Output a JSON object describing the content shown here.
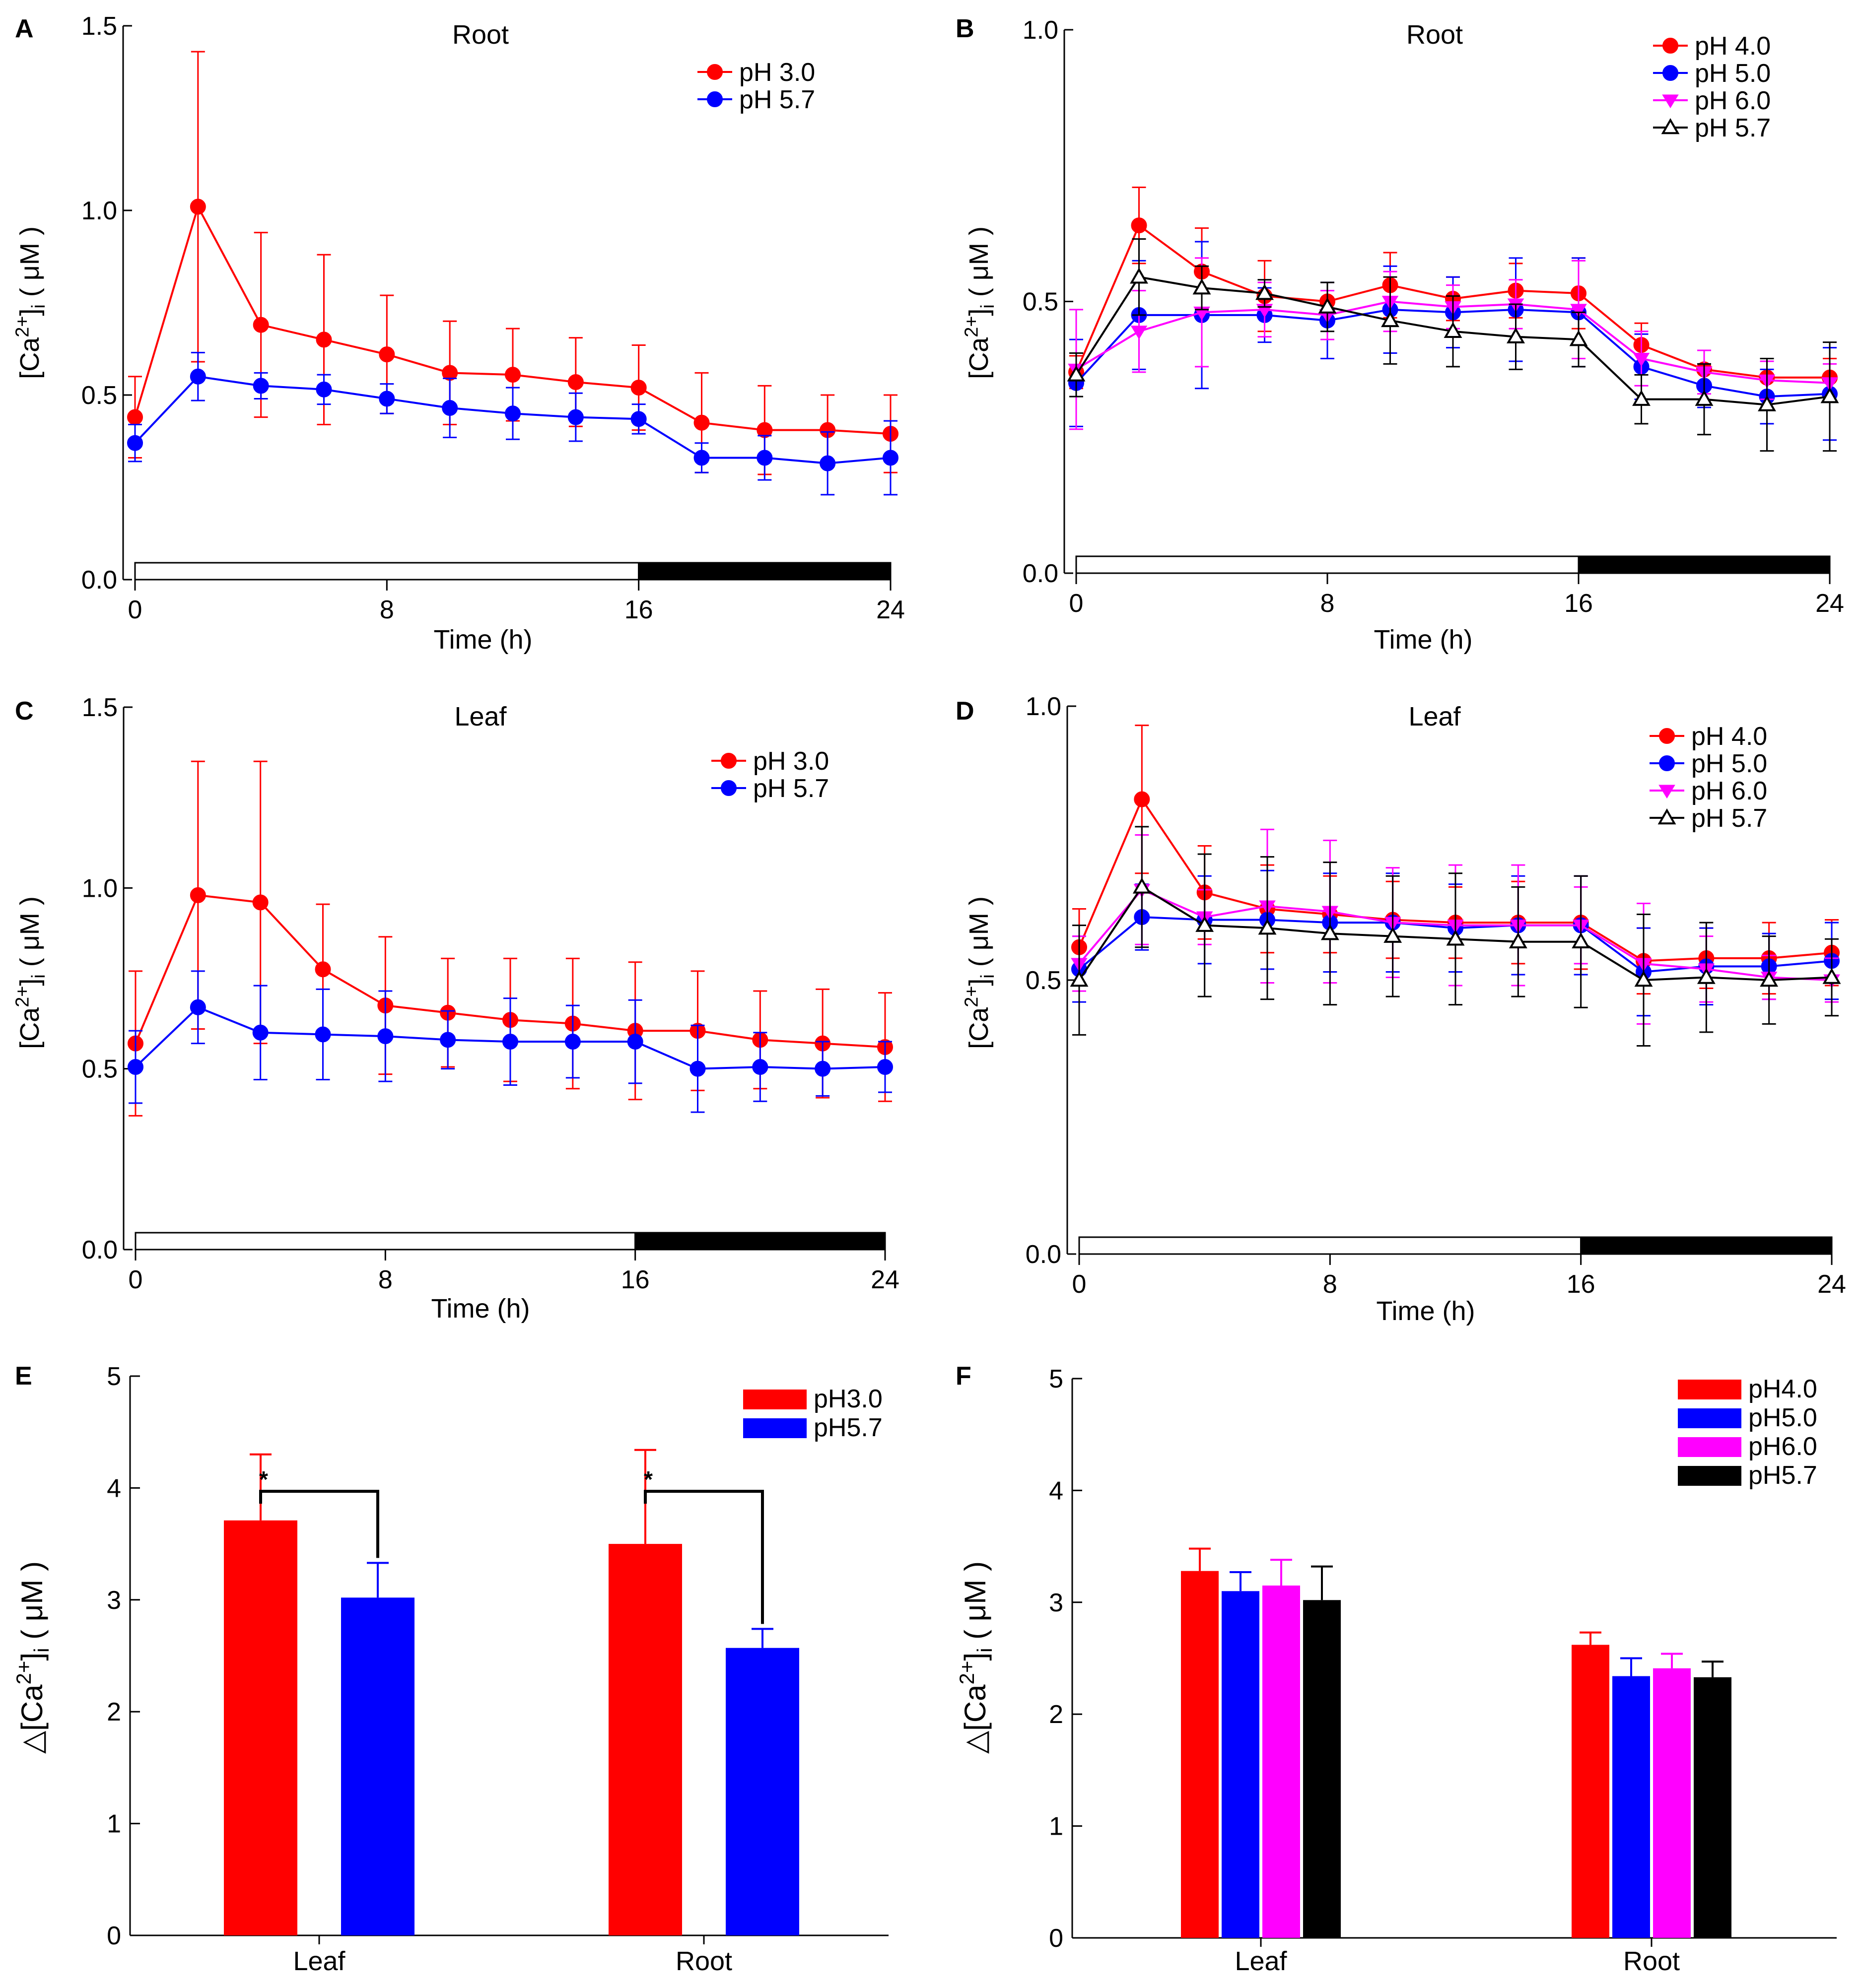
{
  "colors": {
    "red": "#ff0000",
    "blue": "#0000ff",
    "magenta": "#ff00ff",
    "black": "#000000"
  },
  "chart_data": [
    {
      "id": "A",
      "panel_label": "A",
      "type": "line",
      "title": "Root",
      "xlabel": "Time (h)",
      "ylabel_main": "[Ca",
      "ylabel_sup": "2+",
      "ylabel_sub": "i",
      "ylabel_unit": " ( μM )",
      "xlim": [
        0,
        24
      ],
      "ylim": [
        0,
        1.5
      ],
      "xticks": [
        "0",
        "8",
        "16",
        "24"
      ],
      "xtick_values": [
        0,
        8,
        16,
        24
      ],
      "yticks": [
        "0.0",
        "0.5",
        "1.0",
        "1.5"
      ],
      "ytick_values": [
        0,
        0.5,
        1.0,
        1.5
      ],
      "light_period": [
        0,
        16
      ],
      "dark_period": [
        16,
        24
      ],
      "x": [
        0,
        2,
        4,
        6,
        8,
        10,
        12,
        14,
        16,
        18,
        20,
        22,
        24
      ],
      "series": [
        {
          "name": "pH 3.0",
          "color": "red",
          "marker": "circle",
          "values": [
            0.44,
            1.01,
            0.69,
            0.65,
            0.61,
            0.56,
            0.555,
            0.535,
            0.52,
            0.425,
            0.405,
            0.405,
            0.395
          ],
          "errors": [
            0.11,
            0.42,
            0.25,
            0.23,
            0.16,
            0.14,
            0.125,
            0.12,
            0.115,
            0.135,
            0.12,
            0.095,
            0.105
          ]
        },
        {
          "name": "pH 5.7",
          "color": "blue",
          "marker": "circle",
          "values": [
            0.37,
            0.55,
            0.525,
            0.515,
            0.49,
            0.465,
            0.45,
            0.44,
            0.435,
            0.33,
            0.33,
            0.315,
            0.33
          ],
          "errors": [
            0.05,
            0.065,
            0.035,
            0.04,
            0.04,
            0.08,
            0.07,
            0.065,
            0.04,
            0.04,
            0.06,
            0.085,
            0.1
          ]
        }
      ]
    },
    {
      "id": "B",
      "panel_label": "B",
      "type": "line",
      "title": "Root",
      "xlabel": "Time (h)",
      "ylabel_main": "[Ca",
      "ylabel_sup": "2+",
      "ylabel_sub": "i",
      "ylabel_unit": " ( μM )",
      "xlim": [
        0,
        24
      ],
      "ylim": [
        0,
        1.0
      ],
      "xticks": [
        "0",
        "8",
        "16",
        "24"
      ],
      "xtick_values": [
        0,
        8,
        16,
        24
      ],
      "yticks": [
        "0.0",
        "0.5",
        "1.0"
      ],
      "ytick_values": [
        0,
        0.5,
        1.0
      ],
      "light_period": [
        0,
        16
      ],
      "dark_period": [
        16,
        24
      ],
      "x": [
        0,
        2,
        4,
        6,
        8,
        10,
        12,
        14,
        16,
        18,
        20,
        22,
        24
      ],
      "series": [
        {
          "name": "pH 4.0",
          "color": "red",
          "marker": "circle",
          "values": [
            0.37,
            0.64,
            0.555,
            0.51,
            0.5,
            0.53,
            0.505,
            0.52,
            0.515,
            0.42,
            0.375,
            0.36,
            0.36
          ],
          "errors": [
            0.03,
            0.07,
            0.08,
            0.065,
            0.035,
            0.06,
            0.04,
            0.05,
            0.065,
            0.04,
            0.035,
            0.035,
            0.035
          ]
        },
        {
          "name": "pH 5.0",
          "color": "blue",
          "marker": "circle",
          "values": [
            0.35,
            0.475,
            0.475,
            0.475,
            0.465,
            0.485,
            0.48,
            0.485,
            0.48,
            0.38,
            0.345,
            0.325,
            0.33
          ],
          "errors": [
            0.08,
            0.1,
            0.135,
            0.05,
            0.07,
            0.08,
            0.065,
            0.095,
            0.1,
            0.06,
            0.04,
            0.05,
            0.085
          ]
        },
        {
          "name": "pH 6.0",
          "color": "magenta",
          "marker": "triangle-down",
          "values": [
            0.375,
            0.445,
            0.48,
            0.485,
            0.475,
            0.5,
            0.49,
            0.495,
            0.485,
            0.395,
            0.37,
            0.355,
            0.35
          ],
          "errors": [
            0.11,
            0.075,
            0.1,
            0.05,
            0.045,
            0.055,
            0.04,
            0.045,
            0.09,
            0.05,
            0.04,
            0.035,
            0.035
          ]
        },
        {
          "name": "pH 5.7",
          "color": "black",
          "marker": "triangle-open",
          "values": [
            0.365,
            0.545,
            0.525,
            0.515,
            0.49,
            0.465,
            0.445,
            0.435,
            0.43,
            0.32,
            0.32,
            0.31,
            0.325
          ],
          "errors": [
            0.04,
            0.07,
            0.04,
            0.025,
            0.045,
            0.08,
            0.065,
            0.06,
            0.05,
            0.045,
            0.065,
            0.085,
            0.1
          ]
        }
      ]
    },
    {
      "id": "C",
      "panel_label": "C",
      "type": "line",
      "title": "Leaf",
      "xlabel": "Time (h)",
      "ylabel_main": "[Ca",
      "ylabel_sup": "2+",
      "ylabel_sub": "i",
      "ylabel_unit": " ( μM )",
      "xlim": [
        0,
        24
      ],
      "ylim": [
        0,
        1.5
      ],
      "xticks": [
        "0",
        "8",
        "16",
        "24"
      ],
      "xtick_values": [
        0,
        8,
        16,
        24
      ],
      "yticks": [
        "0.0",
        "0.5",
        "1.0",
        "1.5"
      ],
      "ytick_values": [
        0,
        0.5,
        1.0,
        1.5
      ],
      "light_period": [
        0,
        16
      ],
      "dark_period": [
        16,
        24
      ],
      "x": [
        0,
        2,
        4,
        6,
        8,
        10,
        12,
        14,
        16,
        18,
        20,
        22,
        24
      ],
      "series": [
        {
          "name": "pH 3.0",
          "color": "red",
          "marker": "circle",
          "values": [
            0.57,
            0.98,
            0.96,
            0.775,
            0.675,
            0.655,
            0.635,
            0.625,
            0.605,
            0.605,
            0.58,
            0.57,
            0.56
          ],
          "errors": [
            0.2,
            0.37,
            0.39,
            0.18,
            0.19,
            0.15,
            0.17,
            0.18,
            0.19,
            0.165,
            0.135,
            0.15,
            0.15
          ]
        },
        {
          "name": "pH 5.7",
          "color": "blue",
          "marker": "circle",
          "values": [
            0.505,
            0.67,
            0.6,
            0.595,
            0.59,
            0.58,
            0.575,
            0.575,
            0.575,
            0.5,
            0.505,
            0.5,
            0.505
          ],
          "errors": [
            0.1,
            0.1,
            0.13,
            0.125,
            0.125,
            0.08,
            0.12,
            0.1,
            0.115,
            0.12,
            0.095,
            0.075,
            0.07
          ]
        }
      ]
    },
    {
      "id": "D",
      "panel_label": "D",
      "type": "line",
      "title": "Leaf",
      "xlabel": "Time (h)",
      "ylabel_main": "[Ca",
      "ylabel_sup": "2+",
      "ylabel_sub": "i",
      "ylabel_unit": " ( μM )",
      "xlim": [
        0,
        24
      ],
      "ylim": [
        0,
        1.0
      ],
      "xticks": [
        "0",
        "8",
        "16",
        "24"
      ],
      "xtick_values": [
        0,
        8,
        16,
        24
      ],
      "yticks": [
        "0.0",
        "0.5",
        "1.0"
      ],
      "ytick_values": [
        0,
        0.5,
        1.0
      ],
      "light_period": [
        0,
        16
      ],
      "dark_period": [
        16,
        24
      ],
      "x": [
        0,
        2,
        4,
        6,
        8,
        10,
        12,
        14,
        16,
        18,
        20,
        22,
        24
      ],
      "series": [
        {
          "name": "pH 4.0",
          "color": "red",
          "marker": "circle",
          "values": [
            0.56,
            0.83,
            0.66,
            0.63,
            0.62,
            0.61,
            0.605,
            0.605,
            0.605,
            0.535,
            0.54,
            0.54,
            0.55
          ],
          "errors": [
            0.07,
            0.135,
            0.085,
            0.08,
            0.07,
            0.07,
            0.065,
            0.075,
            0.085,
            0.06,
            0.055,
            0.065,
            0.06
          ]
        },
        {
          "name": "pH 5.0",
          "color": "blue",
          "marker": "circle",
          "values": [
            0.52,
            0.615,
            0.61,
            0.61,
            0.605,
            0.605,
            0.595,
            0.6,
            0.6,
            0.515,
            0.525,
            0.525,
            0.535
          ],
          "errors": [
            0.06,
            0.06,
            0.08,
            0.09,
            0.09,
            0.09,
            0.08,
            0.09,
            0.09,
            0.08,
            0.07,
            0.06,
            0.07
          ]
        },
        {
          "name": "pH 6.0",
          "color": "magenta",
          "marker": "triangle-down",
          "values": [
            0.53,
            0.665,
            0.615,
            0.635,
            0.625,
            0.605,
            0.6,
            0.6,
            0.6,
            0.53,
            0.52,
            0.505,
            0.5
          ],
          "errors": [
            0.05,
            0.1,
            0.05,
            0.14,
            0.13,
            0.1,
            0.11,
            0.11,
            0.07,
            0.11,
            0.06,
            0.04,
            0.04
          ]
        },
        {
          "name": "pH 5.7",
          "color": "black",
          "marker": "triangle-open",
          "values": [
            0.5,
            0.67,
            0.6,
            0.595,
            0.585,
            0.58,
            0.575,
            0.57,
            0.57,
            0.5,
            0.505,
            0.5,
            0.505
          ],
          "errors": [
            0.1,
            0.11,
            0.13,
            0.13,
            0.13,
            0.11,
            0.12,
            0.1,
            0.12,
            0.12,
            0.1,
            0.08,
            0.07
          ]
        }
      ]
    },
    {
      "id": "E",
      "panel_label": "E",
      "type": "bar",
      "title": "",
      "xlabel": "",
      "ylabel_prefix": "△",
      "ylabel_main": "[Ca",
      "ylabel_sup": "2+",
      "ylabel_sub": "i",
      "ylabel_unit": " ( μM )",
      "ylim": [
        0,
        5
      ],
      "yticks": [
        "0",
        "1",
        "2",
        "3",
        "4",
        "5"
      ],
      "ytick_values": [
        0,
        1,
        2,
        3,
        4,
        5
      ],
      "categories": [
        "Leaf",
        "Root"
      ],
      "series": [
        {
          "name": "pH3.0",
          "color": "red",
          "values": [
            3.71,
            3.5
          ],
          "errors": [
            0.59,
            0.84
          ]
        },
        {
          "name": "pH5.7",
          "color": "blue",
          "values": [
            3.02,
            2.57
          ],
          "errors": [
            0.31,
            0.17
          ]
        }
      ],
      "significance": [
        {
          "category": "Leaf",
          "label": "*"
        },
        {
          "category": "Root",
          "label": "*"
        }
      ]
    },
    {
      "id": "F",
      "panel_label": "F",
      "type": "bar",
      "title": "",
      "xlabel": "",
      "ylabel_prefix": "△",
      "ylabel_main": "[Ca",
      "ylabel_sup": "2+",
      "ylabel_sub": "i",
      "ylabel_unit": " ( μM )",
      "ylim": [
        0,
        5
      ],
      "yticks": [
        "0",
        "1",
        "2",
        "3",
        "4",
        "5"
      ],
      "ytick_values": [
        0,
        1,
        2,
        3,
        4,
        5
      ],
      "categories": [
        "Leaf",
        "Root"
      ],
      "series": [
        {
          "name": "pH4.0",
          "color": "red",
          "values": [
            3.28,
            2.62
          ],
          "errors": [
            0.2,
            0.11
          ]
        },
        {
          "name": "pH5.0",
          "color": "blue",
          "values": [
            3.1,
            2.34
          ],
          "errors": [
            0.17,
            0.16
          ]
        },
        {
          "name": "pH6.0",
          "color": "magenta",
          "values": [
            3.15,
            2.41
          ],
          "errors": [
            0.23,
            0.13
          ]
        },
        {
          "name": "pH5.7",
          "color": "black",
          "values": [
            3.02,
            2.33
          ],
          "errors": [
            0.3,
            0.14
          ]
        }
      ]
    }
  ]
}
